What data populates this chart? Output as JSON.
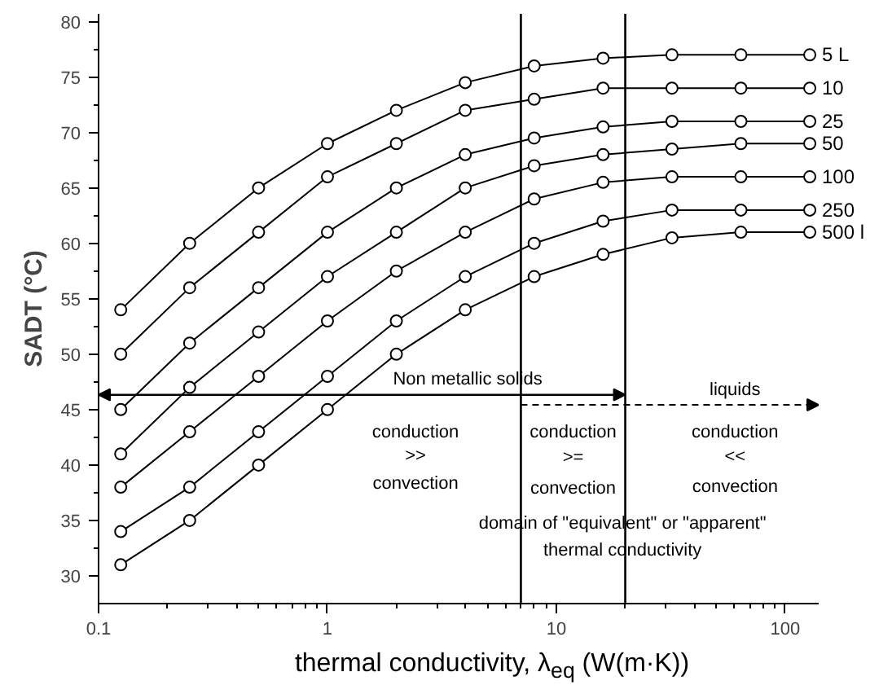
{
  "chart_data": {
    "type": "line",
    "xlabel": "thermal conductivity, λ$_{eq}$ (W(m·K))",
    "ylabel": "SADT (°C)",
    "x": [
      0.125,
      0.25,
      0.5,
      1,
      2,
      4,
      8,
      16,
      32,
      64,
      128
    ],
    "series": [
      {
        "name": "5 L",
        "color": "#000000",
        "values": [
          54,
          60,
          65,
          69,
          72,
          74.5,
          76,
          76.7,
          77,
          77,
          77
        ]
      },
      {
        "name": "10",
        "color": "#000000",
        "values": [
          50,
          56,
          61,
          66,
          69,
          72,
          73,
          74,
          74,
          74,
          74
        ]
      },
      {
        "name": "25",
        "color": "#000000",
        "values": [
          45,
          51,
          56,
          61,
          65,
          68,
          69.5,
          70.5,
          71,
          71,
          71
        ]
      },
      {
        "name": "50",
        "color": "#000000",
        "values": [
          41,
          47,
          52,
          57,
          61,
          65,
          67,
          68,
          68.5,
          69,
          69
        ]
      },
      {
        "name": "100",
        "color": "#000000",
        "values": [
          38,
          43,
          48,
          53,
          57.5,
          61,
          64,
          65.5,
          66,
          66,
          66
        ]
      },
      {
        "name": "250",
        "color": "#000000",
        "values": [
          34,
          38,
          43,
          48,
          53,
          57,
          60,
          62,
          63,
          63,
          63
        ]
      },
      {
        "name": "500 l",
        "color": "#000000",
        "values": [
          31,
          35,
          40,
          45,
          50,
          54,
          57,
          59,
          60.5,
          61,
          61
        ]
      }
    ],
    "log": "x",
    "xlim": [
      0.1,
      140
    ],
    "ylim": [
      27.5,
      80.7
    ],
    "xticks": [
      0.1,
      1,
      10,
      100
    ],
    "yticks": [
      30,
      35,
      40,
      45,
      50,
      55,
      60,
      65,
      70,
      75,
      80
    ],
    "grid": false,
    "legend": false,
    "marker": "circle",
    "line_style": "solid",
    "ref_lines": [
      {
        "axis": "x",
        "value": 7,
        "label": null,
        "color": "#000000"
      },
      {
        "axis": "x",
        "value": 20,
        "label": null,
        "color": "#000000"
      }
    ],
    "annotations": [
      "Non metallic solids",
      "liquids",
      "conduction",
      ">>",
      "convection",
      "conduction",
      ">=",
      "convection",
      "conduction",
      "<<",
      "convection",
      "domain of \"equivalent\" or \"apparent\"",
      "thermal conductivity"
    ]
  }
}
